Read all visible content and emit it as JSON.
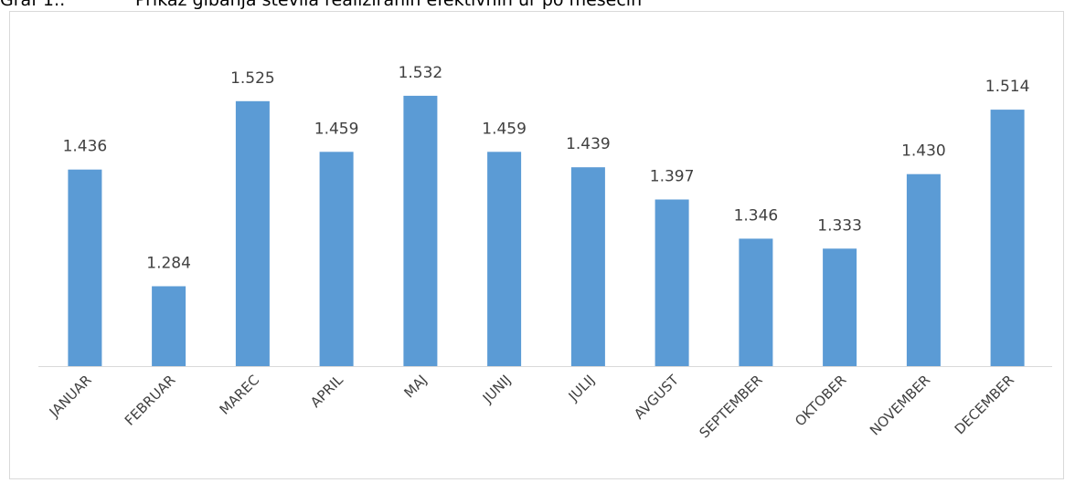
{
  "caption": {
    "label": "Graf 1.:",
    "text": "Prikaz gibanja števila realiziranih efektivnih ur po mesecih"
  },
  "colors": {
    "bar": "#5b9bd5",
    "axis": "#d9d9d9",
    "text": "#404040"
  },
  "chart_data": {
    "type": "bar",
    "title": "",
    "xlabel": "",
    "ylabel": "",
    "categories": [
      "JANUAR",
      "FEBRUAR",
      "MAREC",
      "APRIL",
      "MAJ",
      "JUNIJ",
      "JULIJ",
      "AVGUST",
      "SEPTEMBER",
      "OKTOBER",
      "NOVEMBER",
      "DECEMBER"
    ],
    "values": [
      1436,
      1284,
      1525,
      1459,
      1532,
      1459,
      1439,
      1397,
      1346,
      1333,
      1430,
      1514
    ],
    "value_labels": [
      "1.436",
      "1.284",
      "1.525",
      "1.459",
      "1.532",
      "1.459",
      "1.439",
      "1.397",
      "1.346",
      "1.333",
      "1.430",
      "1.514"
    ],
    "ylim": [
      1180,
      1545
    ],
    "grid": false,
    "legend": false
  }
}
